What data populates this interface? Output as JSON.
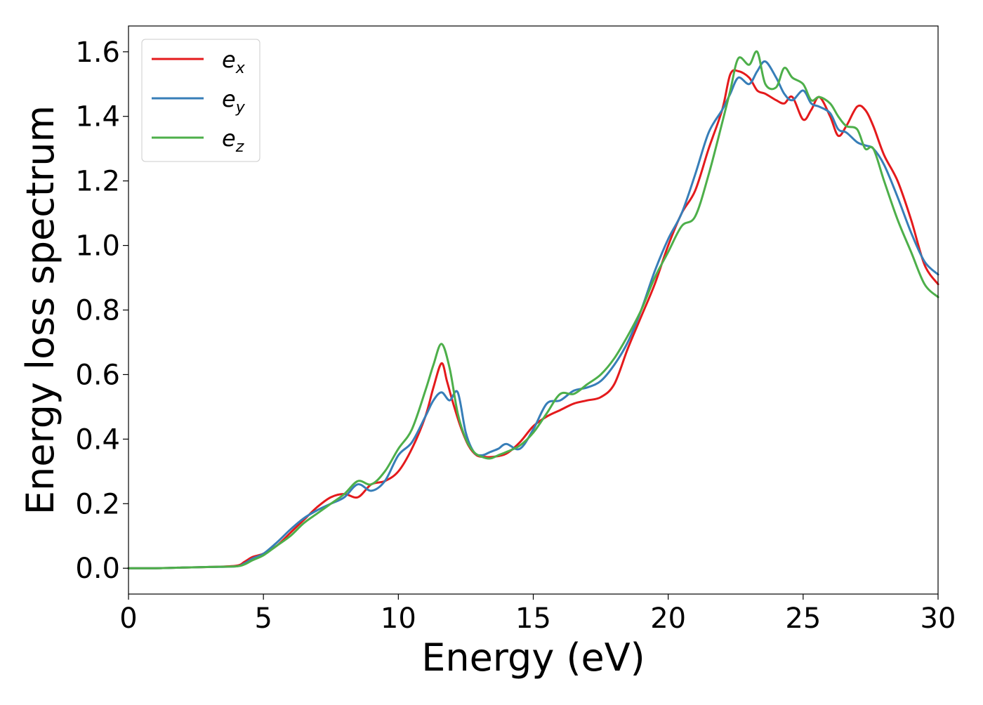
{
  "chart_data": {
    "type": "line",
    "title": "",
    "xlabel": "Energy (eV)",
    "ylabel": "Energy loss spectrum",
    "xlim": [
      0,
      30
    ],
    "ylim": [
      -0.08,
      1.68
    ],
    "xticks": [
      0,
      5,
      10,
      15,
      20,
      25,
      30
    ],
    "xtick_labels": [
      "0",
      "5",
      "10",
      "15",
      "20",
      "25",
      "30"
    ],
    "yticks": [
      0.0,
      0.2,
      0.4,
      0.6,
      0.8,
      1.0,
      1.2,
      1.4,
      1.6
    ],
    "ytick_labels": [
      "0.0",
      "0.2",
      "0.4",
      "0.6",
      "0.8",
      "1.0",
      "1.2",
      "1.4",
      "1.6"
    ],
    "grid": false,
    "legend_position": "top-left",
    "series": [
      {
        "name": "e_x",
        "legend_base": "e",
        "legend_sub": "x",
        "color": "#e41a1c",
        "x": [
          0,
          1,
          2,
          3,
          4,
          4.3,
          4.6,
          5,
          5.5,
          6,
          6.5,
          7,
          7.5,
          8,
          8.5,
          9,
          9.5,
          10,
          10.5,
          11,
          11.3,
          11.6,
          11.8,
          12.0,
          12.3,
          12.6,
          12.9,
          13.2,
          13.5,
          14,
          14.5,
          15,
          15.5,
          16,
          16.5,
          17,
          17.5,
          18,
          18.5,
          19,
          19.5,
          20,
          20.5,
          21,
          21.5,
          22,
          22.3,
          22.6,
          23,
          23.3,
          23.6,
          24,
          24.3,
          24.6,
          25,
          25.3,
          25.6,
          26,
          26.3,
          26.6,
          27,
          27.3,
          27.6,
          28,
          28.5,
          29,
          29.5,
          30
        ],
        "y": [
          0.0,
          0.0,
          0.002,
          0.004,
          0.008,
          0.02,
          0.035,
          0.045,
          0.07,
          0.11,
          0.15,
          0.19,
          0.22,
          0.23,
          0.22,
          0.26,
          0.27,
          0.3,
          0.37,
          0.47,
          0.56,
          0.635,
          0.58,
          0.52,
          0.44,
          0.38,
          0.35,
          0.345,
          0.345,
          0.355,
          0.39,
          0.44,
          0.47,
          0.49,
          0.51,
          0.52,
          0.53,
          0.57,
          0.68,
          0.78,
          0.88,
          1.0,
          1.1,
          1.17,
          1.3,
          1.42,
          1.53,
          1.54,
          1.52,
          1.48,
          1.47,
          1.45,
          1.44,
          1.46,
          1.39,
          1.42,
          1.46,
          1.4,
          1.34,
          1.37,
          1.43,
          1.42,
          1.37,
          1.28,
          1.2,
          1.08,
          0.94,
          0.88
        ]
      },
      {
        "name": "e_y",
        "legend_base": "e",
        "legend_sub": "y",
        "color": "#377eb8",
        "x": [
          0,
          1,
          2,
          3,
          4,
          4.3,
          4.6,
          5,
          5.5,
          6,
          6.5,
          7,
          7.5,
          8,
          8.5,
          9,
          9.5,
          10,
          10.5,
          11,
          11.3,
          11.6,
          11.9,
          12.2,
          12.5,
          12.8,
          13.1,
          13.4,
          13.7,
          14,
          14.5,
          15,
          15.5,
          16,
          16.5,
          17,
          17.5,
          18,
          18.5,
          19,
          19.5,
          20,
          20.5,
          21,
          21.5,
          22,
          22.3,
          22.6,
          23,
          23.3,
          23.6,
          24,
          24.3,
          24.6,
          25,
          25.3,
          25.6,
          26,
          26.3,
          26.6,
          27,
          27.3,
          27.6,
          28,
          28.5,
          29,
          29.5,
          30
        ],
        "y": [
          0.0,
          0.0,
          0.002,
          0.004,
          0.006,
          0.015,
          0.03,
          0.045,
          0.08,
          0.12,
          0.155,
          0.18,
          0.2,
          0.22,
          0.26,
          0.24,
          0.27,
          0.35,
          0.39,
          0.47,
          0.52,
          0.545,
          0.52,
          0.545,
          0.42,
          0.36,
          0.35,
          0.36,
          0.37,
          0.385,
          0.37,
          0.43,
          0.51,
          0.52,
          0.55,
          0.56,
          0.58,
          0.63,
          0.7,
          0.8,
          0.92,
          1.02,
          1.1,
          1.22,
          1.35,
          1.42,
          1.47,
          1.52,
          1.5,
          1.54,
          1.57,
          1.52,
          1.47,
          1.45,
          1.48,
          1.44,
          1.43,
          1.41,
          1.36,
          1.35,
          1.32,
          1.31,
          1.3,
          1.25,
          1.15,
          1.04,
          0.95,
          0.91
        ]
      },
      {
        "name": "e_z",
        "legend_base": "e",
        "legend_sub": "z",
        "color": "#4daf4a",
        "x": [
          0,
          1,
          2,
          3,
          4,
          4.3,
          4.6,
          5,
          5.5,
          6,
          6.5,
          7,
          7.5,
          8,
          8.5,
          9,
          9.5,
          10,
          10.5,
          11,
          11.3,
          11.6,
          11.9,
          12.2,
          12.5,
          12.8,
          13.1,
          13.4,
          13.7,
          14,
          14.5,
          15,
          15.5,
          16,
          16.5,
          17,
          17.5,
          18,
          18.5,
          19,
          19.5,
          20,
          20.5,
          21,
          21.5,
          22,
          22.3,
          22.6,
          23,
          23.3,
          23.6,
          24,
          24.3,
          24.6,
          25,
          25.3,
          25.6,
          26,
          26.3,
          26.6,
          27,
          27.3,
          27.6,
          28,
          28.5,
          29,
          29.5,
          30
        ],
        "y": [
          0.0,
          0.0,
          0.002,
          0.004,
          0.006,
          0.012,
          0.025,
          0.04,
          0.07,
          0.1,
          0.14,
          0.17,
          0.2,
          0.23,
          0.27,
          0.26,
          0.3,
          0.37,
          0.43,
          0.55,
          0.63,
          0.695,
          0.62,
          0.48,
          0.4,
          0.36,
          0.345,
          0.34,
          0.35,
          0.36,
          0.38,
          0.42,
          0.48,
          0.54,
          0.54,
          0.57,
          0.6,
          0.65,
          0.72,
          0.8,
          0.9,
          0.98,
          1.06,
          1.09,
          1.22,
          1.38,
          1.48,
          1.58,
          1.56,
          1.6,
          1.5,
          1.49,
          1.55,
          1.52,
          1.5,
          1.45,
          1.46,
          1.44,
          1.4,
          1.37,
          1.36,
          1.3,
          1.3,
          1.2,
          1.08,
          0.98,
          0.88,
          0.84
        ]
      }
    ]
  }
}
